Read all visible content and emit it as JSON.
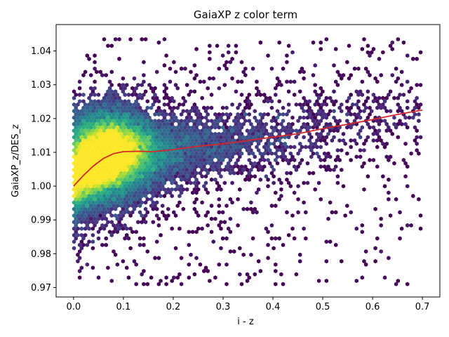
{
  "chart_data": {
    "type": "hexbin",
    "title": "GaiaXP z color term",
    "xlabel": "i - z",
    "ylabel": "GaiaXP_z/DES_z",
    "xlim": [
      -0.035,
      0.735
    ],
    "ylim": [
      0.9672,
      1.0478
    ],
    "xticks": [
      0.0,
      0.1,
      0.2,
      0.3,
      0.4,
      0.5,
      0.6,
      0.7
    ],
    "xtick_labels": [
      "0.0",
      "0.1",
      "0.2",
      "0.3",
      "0.4",
      "0.5",
      "0.6",
      "0.7"
    ],
    "yticks": [
      0.97,
      0.98,
      0.99,
      1.0,
      1.01,
      1.02,
      1.03,
      1.04
    ],
    "ytick_labels": [
      "0.97",
      "0.98",
      "0.99",
      "1.00",
      "1.01",
      "1.02",
      "1.03",
      "1.04"
    ],
    "grid": false,
    "colormap": "viridis",
    "density_data_range": {
      "x": [
        0.0,
        0.7
      ],
      "y": [
        0.971,
        1.044
      ]
    },
    "density_peak": {
      "x": 0.06,
      "y": 1.009
    },
    "series": [
      {
        "type": "line",
        "color": "#d62728",
        "points": [
          [
            0.0,
            1.0
          ],
          [
            0.02,
            1.0032
          ],
          [
            0.04,
            1.006
          ],
          [
            0.06,
            1.0082
          ],
          [
            0.08,
            1.0096
          ],
          [
            0.1,
            1.0102
          ],
          [
            0.13,
            1.0103
          ],
          [
            0.16,
            1.0102
          ],
          [
            0.2,
            1.0108
          ],
          [
            0.25,
            1.0118
          ],
          [
            0.3,
            1.0125
          ],
          [
            0.35,
            1.0135
          ],
          [
            0.4,
            1.0145
          ],
          [
            0.45,
            1.0155
          ],
          [
            0.5,
            1.017
          ],
          [
            0.55,
            1.0183
          ],
          [
            0.6,
            1.0197
          ],
          [
            0.65,
            1.0212
          ],
          [
            0.7,
            1.0225
          ]
        ]
      }
    ]
  }
}
